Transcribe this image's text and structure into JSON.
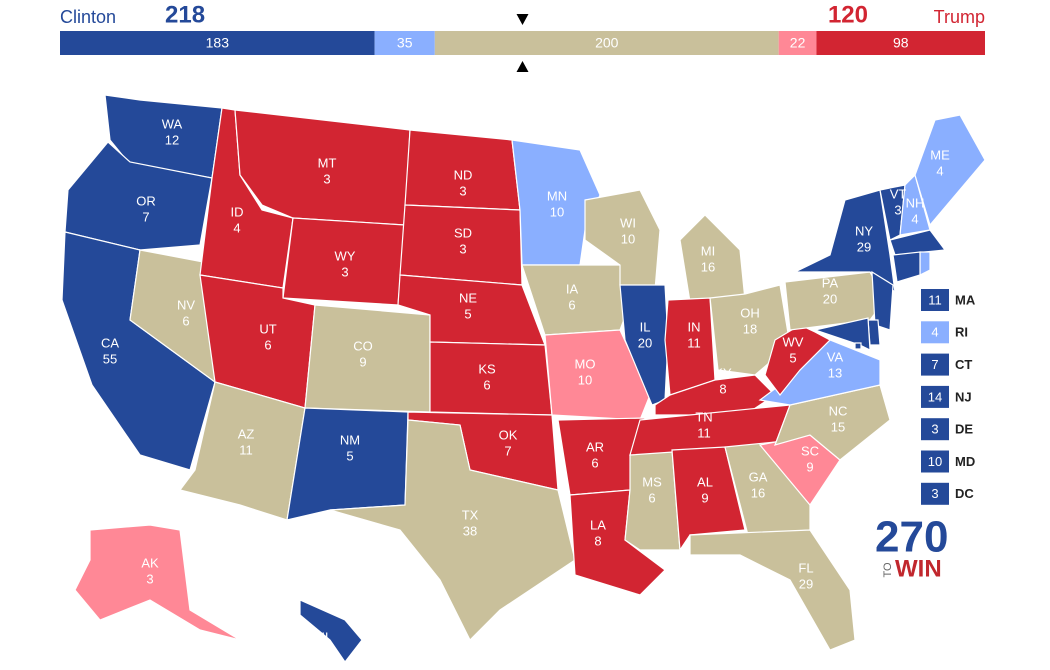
{
  "header": {
    "left": {
      "name": "Clinton",
      "votes": 218,
      "color": "#244999"
    },
    "right": {
      "name": "Trump",
      "votes": 120,
      "color": "#d22532"
    }
  },
  "bar": {
    "segments": [
      {
        "value": 183,
        "color": "#244999"
      },
      {
        "value": 35,
        "color": "#8aafff"
      },
      {
        "value": 200,
        "color": "#c9c09b"
      },
      {
        "value": 22,
        "color": "#ff8896"
      },
      {
        "value": 98,
        "color": "#d22532"
      }
    ]
  },
  "states": [
    {
      "abbr": "WA",
      "ev": 12,
      "color": "#244999"
    },
    {
      "abbr": "OR",
      "ev": 7,
      "color": "#244999"
    },
    {
      "abbr": "CA",
      "ev": 55,
      "color": "#244999"
    },
    {
      "abbr": "NV",
      "ev": 6,
      "color": "#c9c09b"
    },
    {
      "abbr": "ID",
      "ev": 4,
      "color": "#d22532"
    },
    {
      "abbr": "MT",
      "ev": 3,
      "color": "#d22532"
    },
    {
      "abbr": "WY",
      "ev": 3,
      "color": "#d22532"
    },
    {
      "abbr": "UT",
      "ev": 6,
      "color": "#d22532"
    },
    {
      "abbr": "AZ",
      "ev": 11,
      "color": "#c9c09b"
    },
    {
      "abbr": "CO",
      "ev": 9,
      "color": "#c9c09b"
    },
    {
      "abbr": "NM",
      "ev": 5,
      "color": "#244999"
    },
    {
      "abbr": "ND",
      "ev": 3,
      "color": "#d22532"
    },
    {
      "abbr": "SD",
      "ev": 3,
      "color": "#d22532"
    },
    {
      "abbr": "NE",
      "ev": 5,
      "color": "#d22532"
    },
    {
      "abbr": "KS",
      "ev": 6,
      "color": "#d22532"
    },
    {
      "abbr": "OK",
      "ev": 7,
      "color": "#d22532"
    },
    {
      "abbr": "TX",
      "ev": 38,
      "color": "#c9c09b"
    },
    {
      "abbr": "MN",
      "ev": 10,
      "color": "#8aafff"
    },
    {
      "abbr": "IA",
      "ev": 6,
      "color": "#c9c09b"
    },
    {
      "abbr": "MO",
      "ev": 10,
      "color": "#ff8896"
    },
    {
      "abbr": "AR",
      "ev": 6,
      "color": "#d22532"
    },
    {
      "abbr": "LA",
      "ev": 8,
      "color": "#d22532"
    },
    {
      "abbr": "WI",
      "ev": 10,
      "color": "#c9c09b"
    },
    {
      "abbr": "IL",
      "ev": 20,
      "color": "#244999"
    },
    {
      "abbr": "MS",
      "ev": 6,
      "color": "#c9c09b"
    },
    {
      "abbr": "MI",
      "ev": 16,
      "color": "#c9c09b"
    },
    {
      "abbr": "IN",
      "ev": 11,
      "color": "#d22532"
    },
    {
      "abbr": "OH",
      "ev": 18,
      "color": "#c9c09b"
    },
    {
      "abbr": "KY",
      "ev": 8,
      "color": "#d22532"
    },
    {
      "abbr": "TN",
      "ev": 11,
      "color": "#d22532"
    },
    {
      "abbr": "AL",
      "ev": 9,
      "color": "#d22532"
    },
    {
      "abbr": "GA",
      "ev": 16,
      "color": "#c9c09b"
    },
    {
      "abbr": "FL",
      "ev": 29,
      "color": "#c9c09b"
    },
    {
      "abbr": "SC",
      "ev": 9,
      "color": "#ff8896"
    },
    {
      "abbr": "NC",
      "ev": 15,
      "color": "#c9c09b"
    },
    {
      "abbr": "VA",
      "ev": 13,
      "color": "#8aafff"
    },
    {
      "abbr": "WV",
      "ev": 5,
      "color": "#d22532"
    },
    {
      "abbr": "PA",
      "ev": 20,
      "color": "#c9c09b"
    },
    {
      "abbr": "NY",
      "ev": 29,
      "color": "#244999"
    },
    {
      "abbr": "VT",
      "ev": 3,
      "color": "#244999"
    },
    {
      "abbr": "NH",
      "ev": 4,
      "color": "#8aafff"
    },
    {
      "abbr": "ME",
      "ev": 4,
      "color": "#8aafff"
    },
    {
      "abbr": "MA",
      "ev": 11,
      "color": "#244999"
    },
    {
      "abbr": "RI",
      "ev": 4,
      "color": "#8aafff"
    },
    {
      "abbr": "CT",
      "ev": 7,
      "color": "#244999"
    },
    {
      "abbr": "NJ",
      "ev": 14,
      "color": "#244999"
    },
    {
      "abbr": "DE",
      "ev": 3,
      "color": "#244999"
    },
    {
      "abbr": "MD",
      "ev": 10,
      "color": "#244999"
    },
    {
      "abbr": "DC",
      "ev": 3,
      "color": "#244999"
    },
    {
      "abbr": "AK",
      "ev": 3,
      "color": "#ff8896"
    },
    {
      "abbr": "HI",
      "ev": 4,
      "color": "#244999"
    }
  ],
  "logo": {
    "number": "270",
    "to": "TO",
    "win": "WIN"
  }
}
